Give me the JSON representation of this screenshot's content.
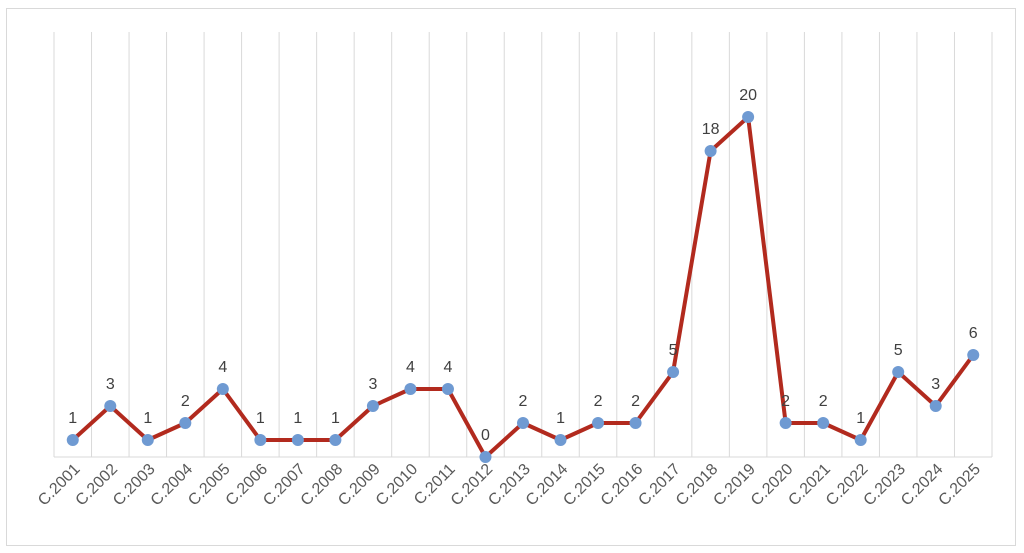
{
  "chart_data": {
    "type": "line",
    "categories": [
      "C.2001",
      "C.2002",
      "C.2003",
      "C.2004",
      "C.2005",
      "C.2006",
      "C.2007",
      "C.2008",
      "C.2009",
      "C.2010",
      "C.2011",
      "C.2012",
      "C.2013",
      "C.2014",
      "C.2015",
      "C.2016",
      "C.2017",
      "C.2018",
      "C.2019",
      "C.2020",
      "C.2021",
      "C.2022",
      "C.2023",
      "C.2024",
      "C.2025"
    ],
    "series": [
      {
        "values": [
          1,
          3,
          1,
          2,
          4,
          1,
          1,
          1,
          3,
          4,
          4,
          0,
          2,
          1,
          2,
          2,
          5,
          18,
          20,
          2,
          2,
          1,
          5,
          3,
          6
        ]
      }
    ],
    "ylim": [
      0,
      25
    ],
    "grid": "vertical",
    "show_data_labels": true,
    "colors": {
      "line": "#b22a1e",
      "marker": "#6f9ad2",
      "grid": "#d9d9d9",
      "axis": "#d9d9d9"
    }
  }
}
